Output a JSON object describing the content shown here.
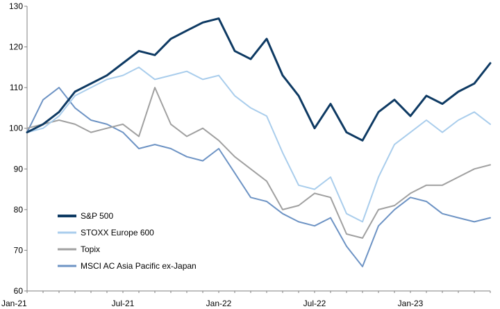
{
  "chart_data": {
    "type": "line",
    "title": "",
    "xlabel": "",
    "ylabel": "",
    "ylim": [
      60,
      130
    ],
    "yticks": [
      60,
      70,
      80,
      90,
      100,
      110,
      120,
      130
    ],
    "xticks": [
      "Jan-21",
      "Jul-21",
      "Jan-22",
      "Jul-22",
      "Jan-23"
    ],
    "grid": false,
    "legend_position": "bottom-left",
    "x": [
      "Jan-21",
      "Feb-21",
      "Mar-21",
      "Apr-21",
      "May-21",
      "Jun-21",
      "Jul-21",
      "Aug-21",
      "Sep-21",
      "Oct-21",
      "Nov-21",
      "Dec-21",
      "Jan-22",
      "Feb-22",
      "Mar-22",
      "Apr-22",
      "May-22",
      "Jun-22",
      "Jul-22",
      "Aug-22",
      "Sep-22",
      "Oct-22",
      "Nov-22",
      "Dec-22",
      "Jan-23",
      "Feb-23",
      "Mar-23",
      "Apr-23",
      "May-23",
      "Jun-23"
    ],
    "series": [
      {
        "name": "S&P 500",
        "color": "#0e3a63",
        "width": 3,
        "values": [
          99,
          101,
          104,
          109,
          111,
          113,
          116,
          119,
          118,
          122,
          124,
          126,
          127,
          119,
          117,
          122,
          113,
          108,
          100,
          106,
          99,
          97,
          104,
          107,
          103,
          108,
          106,
          109,
          111,
          116
        ]
      },
      {
        "name": "STOXX Europe 600",
        "color": "#a9cdec",
        "width": 2,
        "values": [
          99,
          100,
          103,
          108,
          110,
          112,
          113,
          115,
          112,
          113,
          114,
          112,
          113,
          108,
          105,
          103,
          94,
          86,
          85,
          88,
          79,
          77,
          88,
          96,
          99,
          102,
          99,
          102,
          104,
          101
        ]
      },
      {
        "name": "Topix",
        "color": "#a0a0a0",
        "width": 2,
        "values": [
          100,
          101,
          102,
          101,
          99,
          100,
          101,
          98,
          110,
          101,
          98,
          100,
          97,
          93,
          90,
          87,
          80,
          81,
          84,
          83,
          74,
          73,
          80,
          81,
          84,
          86,
          86,
          88,
          90,
          91
        ]
      },
      {
        "name": "MSCI AC Asia Pacific ex-Japan",
        "color": "#6d93c4",
        "width": 2,
        "values": [
          99,
          107,
          110,
          105,
          102,
          101,
          99,
          95,
          96,
          95,
          93,
          92,
          95,
          89,
          83,
          82,
          79,
          77,
          76,
          78,
          71,
          66,
          76,
          80,
          83,
          82,
          79,
          78,
          77,
          78
        ]
      }
    ]
  }
}
